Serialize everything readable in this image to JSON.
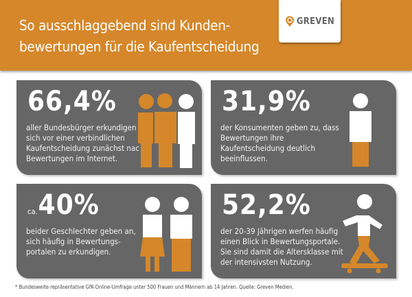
{
  "header": {
    "title": "So ausschlaggebend sind Kunden-bewertungen für die Kaufentscheidung",
    "title_line1": "So ausschlaggebend sind Kunden-",
    "title_line2": "bewertungen für die Kaufentscheidung",
    "logo": "GREVEN"
  },
  "colors": {
    "orange": "#d5872a",
    "card": "#666666"
  },
  "cards": [
    {
      "value": "66,4%",
      "text": "aller Bundesbürger erkundigen sich vor einer verbindlichen Kaufentscheidung zunächst nach Bewertungen im Internet.",
      "icon": "three-people-icon"
    },
    {
      "value": "31,9%",
      "text": "der Konsumenten geben zu, dass Bewertungen ihre Kaufentscheidung deutlich beeinflussen.",
      "icon": "person-icon"
    },
    {
      "prefix": "ca.",
      "value": "40%",
      "text": "beider Geschlechter geben an, sich häufig in Bewertungs-portalen zu erkundigen.",
      "icon": "woman-man-icon"
    },
    {
      "value": "52,2%",
      "text": "der 20-39 Jährigen werfen häufig einen Blick in Bewertungsportale. Sie sind damit die Altersklasse mit der intensivsten Nutzung.",
      "icon": "skateboarder-icon"
    }
  ],
  "footnote": "* Bundesweite repräsentative GfK-Online-Umfrage unter 500 Frauen und Männern ab 14 Jahren. Quelle: Greven Medien."
}
